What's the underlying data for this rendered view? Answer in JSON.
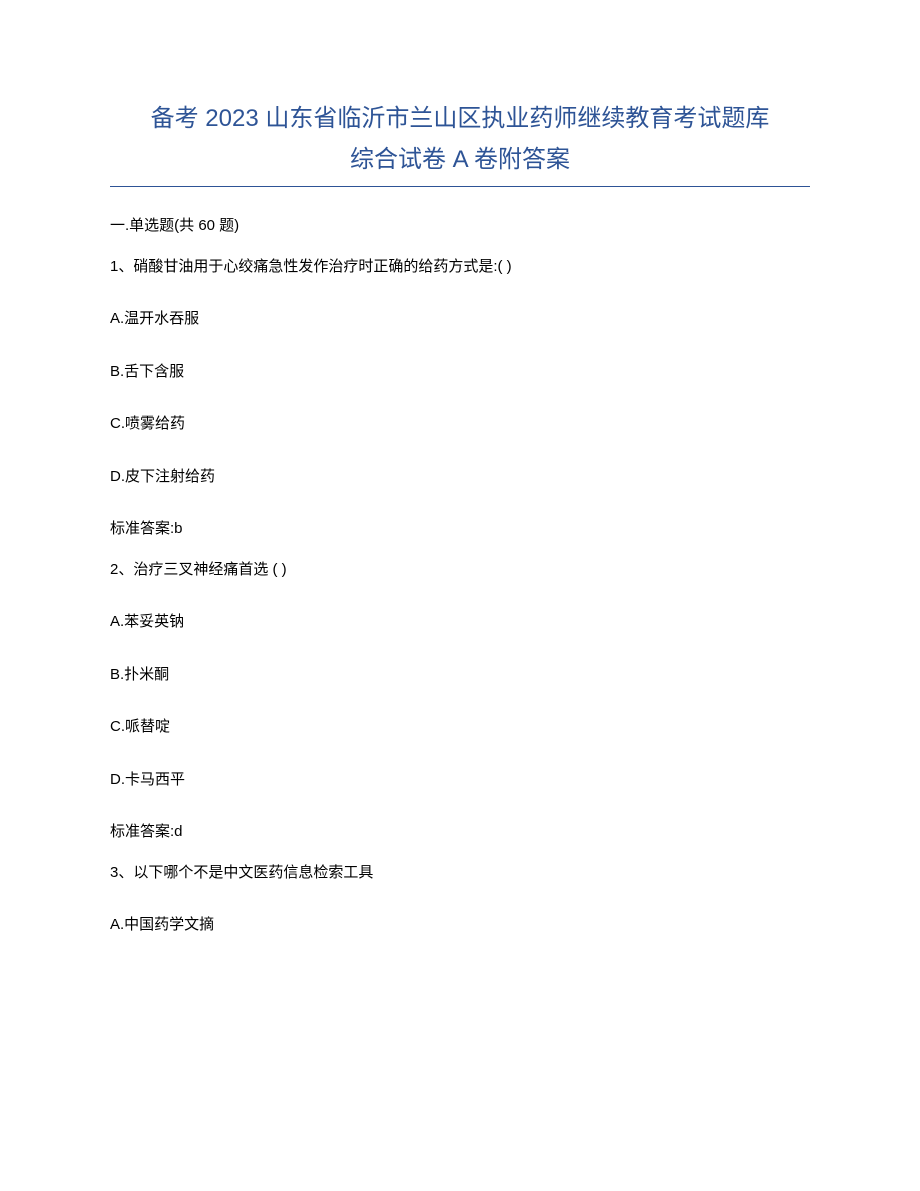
{
  "title_line1": "备考 2023 山东省临沂市兰山区执业药师继续教育考试题库",
  "title_line2": "综合试卷 A 卷附答案",
  "section_header": "一.单选题(共 60 题)",
  "questions": [
    {
      "prompt": "1、硝酸甘油用于心绞痛急性发作治疗时正确的给药方式是:( )",
      "options": [
        "A.温开水吞服",
        "B.舌下含服",
        "C.喷雾给药",
        "D.皮下注射给药"
      ],
      "answer": "标准答案:b"
    },
    {
      "prompt": "2、治疗三叉神经痛首选 ( )",
      "options": [
        "A.苯妥英钠",
        "B.扑米酮",
        "C.哌替啶",
        "D.卡马西平"
      ],
      "answer": "标准答案:d"
    },
    {
      "prompt": "3、以下哪个不是中文医药信息检索工具",
      "options": [
        "A.中国药学文摘"
      ],
      "answer": null
    }
  ],
  "colors": {
    "title": "#2e5496",
    "text": "#000000",
    "background": "#ffffff",
    "divider": "#2e5496"
  },
  "typography": {
    "title_fontsize": 24,
    "body_fontsize": 15,
    "font_family": "Microsoft YaHei"
  }
}
